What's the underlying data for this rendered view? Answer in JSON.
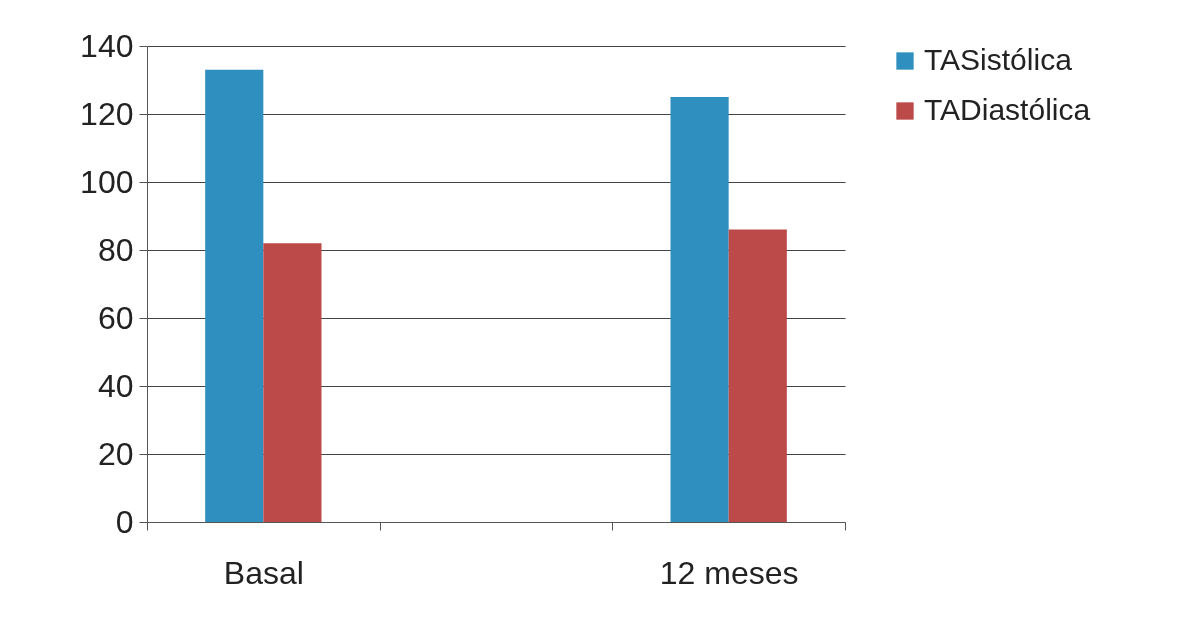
{
  "chart_data": {
    "type": "bar",
    "categories": [
      "Basal",
      null,
      "12 meses"
    ],
    "series": [
      {
        "name": "TASistólica",
        "color": "#2f8fbf",
        "values": [
          133,
          null,
          125
        ]
      },
      {
        "name": "TADiastólica",
        "color": "#bc4a48",
        "values": [
          82,
          null,
          86
        ]
      }
    ],
    "ylim": [
      0,
      140
    ],
    "yticks": [
      0,
      20,
      40,
      60,
      80,
      100,
      120,
      140
    ],
    "grid": "y",
    "legend": "right"
  }
}
